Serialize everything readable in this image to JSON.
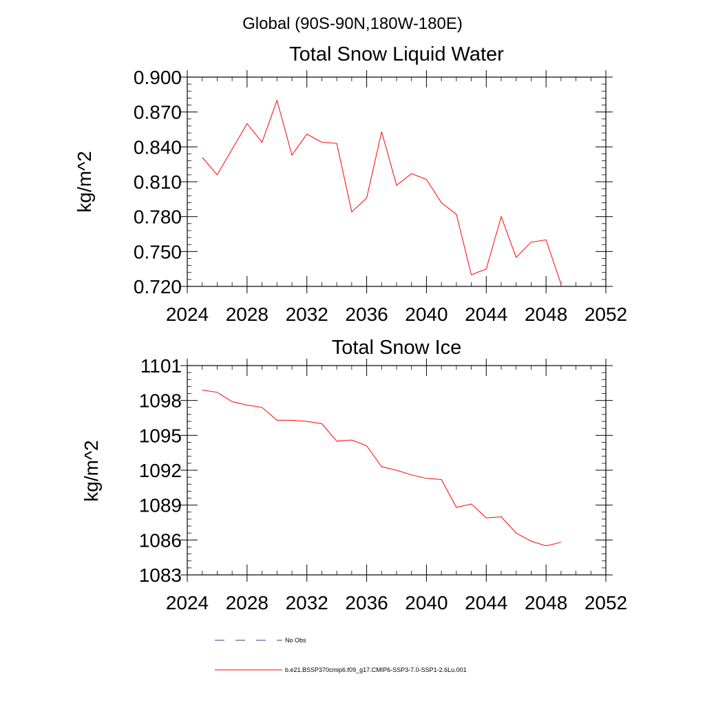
{
  "figure": {
    "region_title": "Global (90S-90N,180W-180E)"
  },
  "chart_data": [
    {
      "type": "line",
      "title": "Total Snow Liquid Water",
      "xlabel": "",
      "ylabel": "kg/m^2",
      "xlim": [
        2024,
        2052
      ],
      "ylim": [
        0.72,
        0.9
      ],
      "x_ticks": [
        2024,
        2028,
        2032,
        2036,
        2040,
        2044,
        2048,
        2052
      ],
      "y_ticks": [
        "0.720",
        "0.750",
        "0.780",
        "0.810",
        "0.840",
        "0.870",
        "0.900"
      ],
      "grid": false,
      "series": [
        {
          "name": "b.e21.BSSP370cmip6.f09_g17.CMIP6-SSP3-7.0-SSP1-2.6Lu.001",
          "color": "#ff0000",
          "x": [
            2025,
            2026,
            2027,
            2028,
            2029,
            2030,
            2031,
            2032,
            2033,
            2034,
            2035,
            2036,
            2037,
            2038,
            2039,
            2040,
            2041,
            2042,
            2043,
            2044,
            2045,
            2046,
            2047,
            2048,
            2049
          ],
          "y": [
            0.831,
            0.816,
            0.838,
            0.86,
            0.844,
            0.88,
            0.833,
            0.851,
            0.844,
            0.843,
            0.784,
            0.796,
            0.853,
            0.807,
            0.817,
            0.812,
            0.792,
            0.782,
            0.73,
            0.735,
            0.78,
            0.745,
            0.758,
            0.76,
            0.722
          ]
        }
      ]
    },
    {
      "type": "line",
      "title": "Total Snow Ice",
      "xlabel": "",
      "ylabel": "kg/m^2",
      "xlim": [
        2024,
        2052
      ],
      "ylim": [
        1083,
        1101
      ],
      "x_ticks": [
        2024,
        2028,
        2032,
        2036,
        2040,
        2044,
        2048,
        2052
      ],
      "y_ticks": [
        "1083",
        "1086",
        "1089",
        "1092",
        "1095",
        "1098",
        "1101"
      ],
      "grid": false,
      "series": [
        {
          "name": "b.e21.BSSP370cmip6.f09_g17.CMIP6-SSP3-7.0-SSP1-2.6Lu.001",
          "color": "#ff0000",
          "x": [
            2025,
            2026,
            2027,
            2028,
            2029,
            2030,
            2031,
            2032,
            2033,
            2034,
            2035,
            2036,
            2037,
            2038,
            2039,
            2040,
            2041,
            2042,
            2043,
            2044,
            2045,
            2046,
            2047,
            2048,
            2049
          ],
          "y": [
            1098.9,
            1098.7,
            1097.9,
            1097.6,
            1097.4,
            1096.3,
            1096.3,
            1096.2,
            1096.0,
            1094.5,
            1094.6,
            1094.1,
            1092.3,
            1092.0,
            1091.6,
            1091.3,
            1091.2,
            1088.8,
            1089.1,
            1087.9,
            1088.0,
            1086.6,
            1085.9,
            1085.5,
            1085.8
          ]
        }
      ]
    }
  ],
  "legend": {
    "placement": "bottom",
    "items": [
      {
        "label": "No Obs",
        "style": "dashed",
        "color": "#3a3a8c"
      },
      {
        "label": "b.e21.BSSP370cmip6.f09_g17.CMIP6-SSP3-7.0-SSP1-2.6Lu.001",
        "style": "solid",
        "color": "#ff0000"
      }
    ]
  }
}
